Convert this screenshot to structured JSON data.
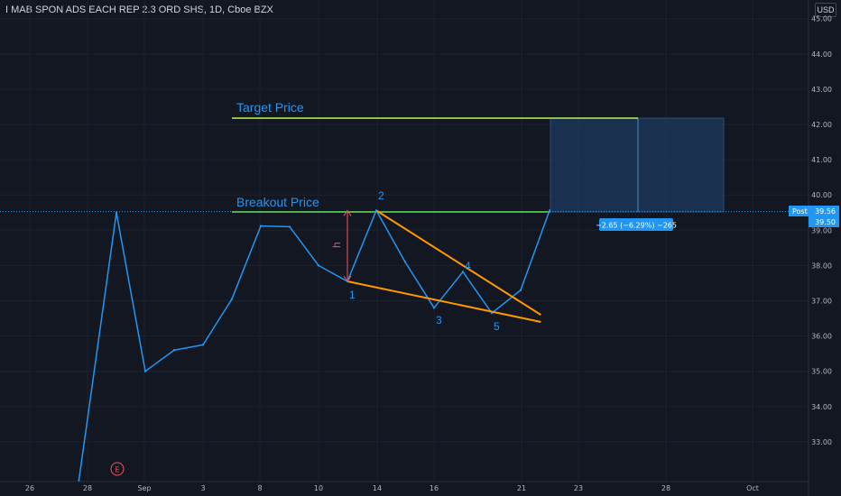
{
  "header": {
    "symbol": "I MAB SPON ADS EACH REP 2.3 ORD SHS, 1D, Cboe BZX",
    "currency": "USD"
  },
  "chart_data": {
    "type": "line",
    "ylim": [
      32.0,
      45.8
    ],
    "y_ticks": [
      "33.00",
      "34.00",
      "35.00",
      "36.00",
      "37.00",
      "38.00",
      "39.00",
      "40.00",
      "41.00",
      "42.00",
      "43.00",
      "44.00",
      "45.00"
    ],
    "x_ticks": [
      "26",
      "28",
      "Sep",
      "3",
      "8",
      "10",
      "14",
      "16",
      "21",
      "23",
      "28",
      "Oct"
    ],
    "series": [
      {
        "color": "#2196f3",
        "values": [
          {
            "day": 27.7,
            "price": 31.9
          },
          {
            "day": 29.0,
            "price": 39.5
          },
          {
            "day": 30.0,
            "price": 35.0
          },
          {
            "day": 31.0,
            "price": 35.6
          },
          {
            "day": 32.0,
            "price": 35.75
          },
          {
            "day": 33.0,
            "price": 37.05
          },
          {
            "day": 34.0,
            "price": 39.12
          },
          {
            "day": 35.0,
            "price": 39.1
          },
          {
            "day": 36.0,
            "price": 38.0
          },
          {
            "day": 37.0,
            "price": 37.55
          },
          {
            "day": 38.0,
            "price": 39.56
          },
          {
            "day": 39.0,
            "price": 38.1
          },
          {
            "day": 40.0,
            "price": 36.8
          },
          {
            "day": 41.0,
            "price": 37.82
          },
          {
            "day": 42.0,
            "price": 36.65
          },
          {
            "day": 43.0,
            "price": 37.3
          },
          {
            "day": 44.0,
            "price": 39.56
          }
        ]
      }
    ],
    "annotations": {
      "target_label": "Target Price",
      "target_price": 42.2,
      "breakout_label": "Breakout Price",
      "breakout_price": 39.56,
      "height_label": "h",
      "wave_labels": [
        "1",
        "2",
        "3",
        "4",
        "5"
      ],
      "measure_label": "−2.65 (−6.29%) −265",
      "earnings_label": "E",
      "post_label": "Post",
      "post_price": "39.56",
      "last_price": "39.50"
    }
  },
  "colors": {
    "background": "#131722",
    "grid": "#1e222d",
    "price_line": "#2196f3",
    "trendline": "#ff9800",
    "level_line": "#4caf50",
    "height_arrow": "#f7525f",
    "projection_fill": "#1e3a5f"
  }
}
